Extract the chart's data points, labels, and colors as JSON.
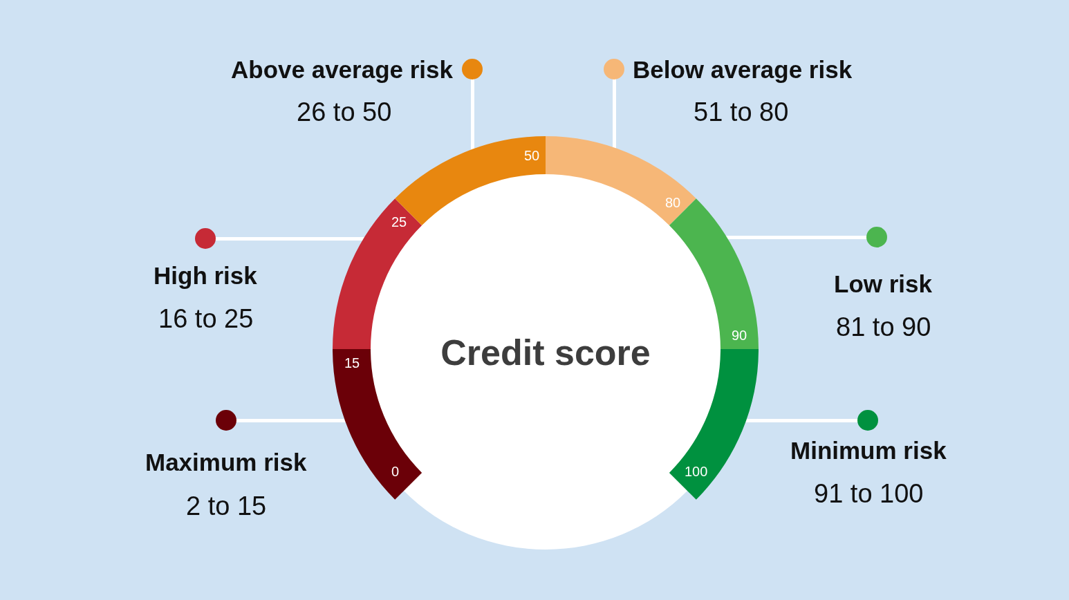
{
  "chart_data": {
    "type": "donut",
    "title": "Credit score",
    "categories": [
      "Maximum risk",
      "High risk",
      "Above average risk",
      "Below average risk",
      "Low risk",
      "Minimum risk"
    ],
    "values": [
      16.7,
      16.7,
      16.7,
      16.7,
      16.7,
      16.7
    ],
    "colors": [
      "#6b0008",
      "#c62a36",
      "#e8870f",
      "#f6b777",
      "#4cb54f",
      "#00913f"
    ],
    "legend": "bottom right",
    "annotations": [
      "2 to 15",
      "16 to 25",
      "26 to 50",
      "51 to 80",
      "81 to 90",
      "91 to 100",
      "0",
      "15",
      "25",
      "50",
      "80",
      "90",
      "100"
    ]
  }
}
